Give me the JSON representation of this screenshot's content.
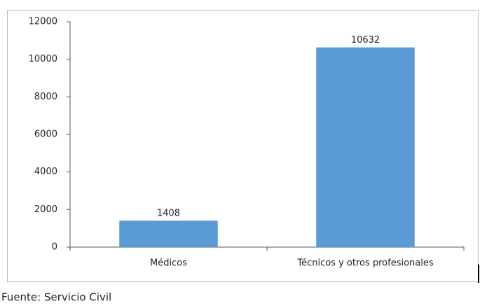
{
  "chart_data": {
    "type": "bar",
    "categories": [
      "Médicos",
      "Técnicos y otros profesionales"
    ],
    "values": [
      1408,
      10632
    ],
    "color": "#5b9bd5",
    "ylim": [
      0,
      12000
    ],
    "yticks": [
      0,
      2000,
      4000,
      6000,
      8000,
      10000,
      12000
    ],
    "grid": false,
    "source": "Fuente: Servicio Civil"
  }
}
